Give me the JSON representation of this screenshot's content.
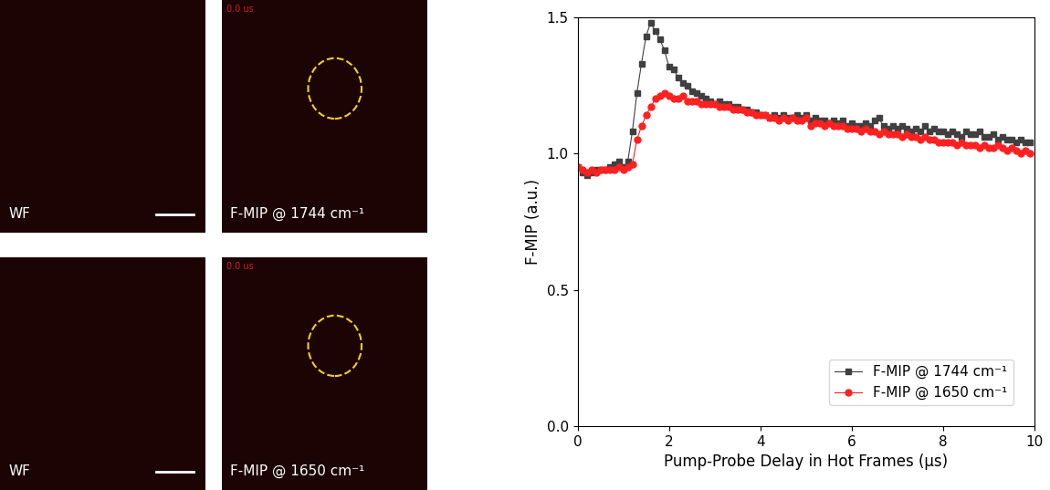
{
  "panels": [
    {
      "label": "WF"
    },
    {
      "label": "F-MIP @ 1744 cm⁻¹",
      "timestamp": "0.0 us"
    },
    {
      "label": "WF"
    },
    {
      "label": "F-MIP @ 1650 cm⁻¹",
      "timestamp": "0.0 us"
    }
  ],
  "chart_data": {
    "type": "line",
    "x_label": "Pump-Probe Delay in Hot Frames (μs)",
    "y_label": "F-MIP (a.u.)",
    "x": [
      0.0,
      0.1,
      0.2,
      0.3,
      0.4,
      0.5,
      0.6,
      0.7,
      0.8,
      0.9,
      1.0,
      1.1,
      1.2,
      1.3,
      1.4,
      1.5,
      1.6,
      1.7,
      1.8,
      1.9,
      2.0,
      2.1,
      2.2,
      2.3,
      2.4,
      2.5,
      2.6,
      2.7,
      2.8,
      2.9,
      3.0,
      3.1,
      3.2,
      3.3,
      3.4,
      3.5,
      3.6,
      3.7,
      3.8,
      3.9,
      4.0,
      4.1,
      4.2,
      4.3,
      4.4,
      4.5,
      4.6,
      4.7,
      4.8,
      4.9,
      5.0,
      5.1,
      5.2,
      5.3,
      5.4,
      5.5,
      5.6,
      5.7,
      5.8,
      5.9,
      6.0,
      6.1,
      6.2,
      6.3,
      6.4,
      6.5,
      6.6,
      6.7,
      6.8,
      6.9,
      7.0,
      7.1,
      7.2,
      7.3,
      7.4,
      7.5,
      7.6,
      7.7,
      7.8,
      7.9,
      8.0,
      8.1,
      8.2,
      8.3,
      8.4,
      8.5,
      8.6,
      8.7,
      8.8,
      8.9,
      9.0,
      9.1,
      9.2,
      9.3,
      9.4,
      9.5,
      9.6,
      9.7,
      9.8,
      9.9
    ],
    "series": [
      {
        "name": "F-MIP @ 1744 cm⁻¹",
        "color": "#404040",
        "marker": "square",
        "line_style": "solid",
        "values": [
          0.95,
          0.93,
          0.92,
          0.93,
          0.94,
          0.94,
          0.94,
          0.95,
          0.96,
          0.97,
          0.95,
          0.97,
          1.08,
          1.22,
          1.33,
          1.43,
          1.48,
          1.45,
          1.42,
          1.38,
          1.32,
          1.31,
          1.28,
          1.26,
          1.25,
          1.23,
          1.22,
          1.21,
          1.2,
          1.19,
          1.18,
          1.19,
          1.18,
          1.18,
          1.17,
          1.17,
          1.16,
          1.16,
          1.15,
          1.15,
          1.14,
          1.14,
          1.13,
          1.14,
          1.13,
          1.14,
          1.13,
          1.13,
          1.14,
          1.13,
          1.14,
          1.12,
          1.13,
          1.12,
          1.12,
          1.11,
          1.12,
          1.11,
          1.12,
          1.1,
          1.11,
          1.1,
          1.1,
          1.11,
          1.1,
          1.12,
          1.13,
          1.1,
          1.09,
          1.1,
          1.09,
          1.1,
          1.09,
          1.08,
          1.09,
          1.08,
          1.1,
          1.08,
          1.09,
          1.08,
          1.08,
          1.07,
          1.08,
          1.07,
          1.06,
          1.08,
          1.07,
          1.07,
          1.08,
          1.06,
          1.06,
          1.07,
          1.05,
          1.06,
          1.05,
          1.05,
          1.04,
          1.05,
          1.04,
          1.04
        ]
      },
      {
        "name": "F-MIP @ 1650 cm⁻¹",
        "color": "#ff2020",
        "marker": "circle",
        "line_style": "solid",
        "values": [
          0.95,
          0.94,
          0.93,
          0.94,
          0.93,
          0.94,
          0.94,
          0.94,
          0.94,
          0.95,
          0.94,
          0.95,
          0.96,
          1.05,
          1.1,
          1.14,
          1.17,
          1.2,
          1.21,
          1.22,
          1.21,
          1.2,
          1.2,
          1.21,
          1.19,
          1.19,
          1.19,
          1.18,
          1.18,
          1.18,
          1.18,
          1.17,
          1.17,
          1.17,
          1.16,
          1.16,
          1.16,
          1.15,
          1.15,
          1.14,
          1.14,
          1.14,
          1.13,
          1.13,
          1.12,
          1.13,
          1.12,
          1.13,
          1.12,
          1.12,
          1.13,
          1.1,
          1.11,
          1.11,
          1.1,
          1.11,
          1.1,
          1.1,
          1.1,
          1.09,
          1.09,
          1.09,
          1.08,
          1.09,
          1.08,
          1.08,
          1.07,
          1.08,
          1.07,
          1.07,
          1.07,
          1.06,
          1.07,
          1.06,
          1.06,
          1.05,
          1.06,
          1.05,
          1.05,
          1.04,
          1.04,
          1.04,
          1.04,
          1.03,
          1.04,
          1.03,
          1.03,
          1.03,
          1.02,
          1.03,
          1.02,
          1.02,
          1.03,
          1.02,
          1.01,
          1.02,
          1.01,
          1.0,
          1.01,
          1.0
        ]
      }
    ],
    "xlim": [
      0,
      10
    ],
    "xticks": [
      0,
      2,
      4,
      6,
      8,
      10
    ],
    "ylim": [
      0,
      1.5
    ],
    "yticks": [
      {
        "value": 0,
        "label": "0.0"
      },
      {
        "value": 0.5,
        "label": "0.5"
      },
      {
        "value": 1,
        "label": "1.0"
      },
      {
        "value": 1.5,
        "label": "1.5"
      }
    ],
    "legend": "lower right",
    "grid": false
  }
}
